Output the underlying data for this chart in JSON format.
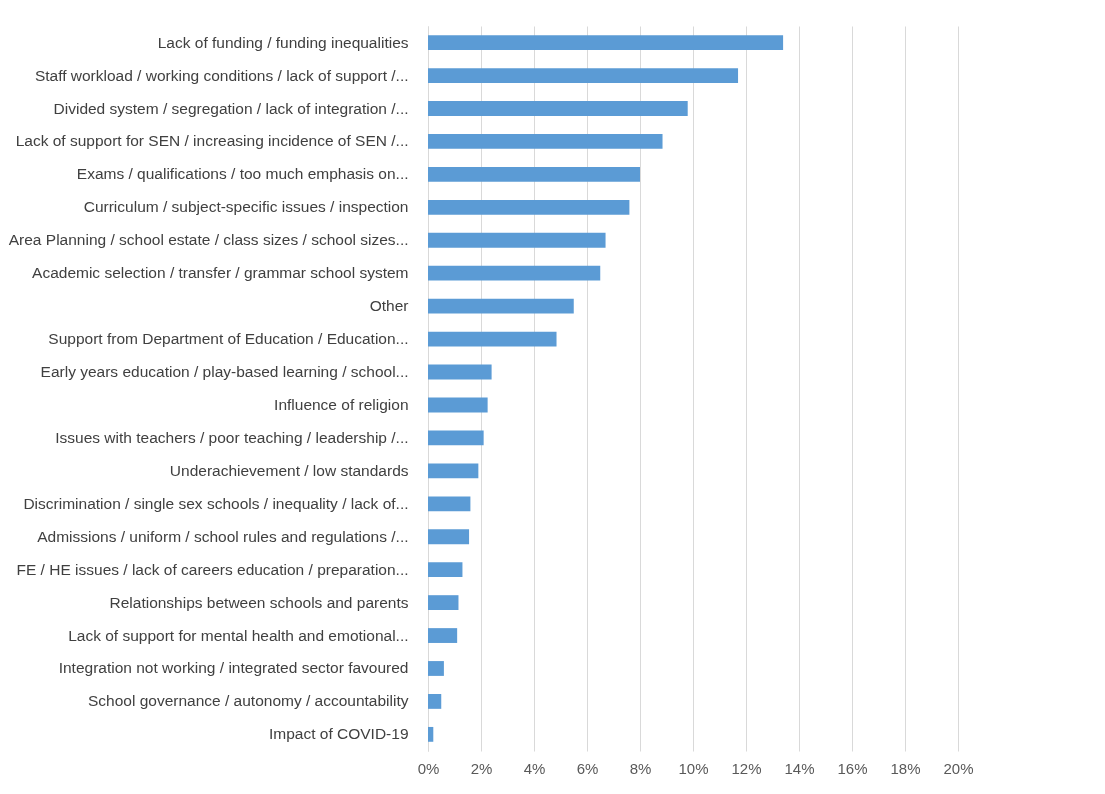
{
  "chart_data": {
    "type": "bar",
    "orientation": "horizontal",
    "categories": [
      "Lack of funding / funding inequalities",
      "Staff workload / working conditions / lack of support /...",
      "Divided system / segregation / lack of integration /...",
      "Lack of support for SEN / increasing incidence of SEN /...",
      "Exams / qualifications / too much emphasis on...",
      "Curriculum / subject-specific issues / inspection",
      "Area Planning / school estate / class sizes / school sizes...",
      "Academic selection / transfer / grammar school system",
      "Other",
      "Support from Department of Education / Education...",
      "Early years education / play-based learning / school...",
      "Influence of religion",
      "Issues with teachers / poor teaching / leadership /...",
      "Underachievement / low standards",
      "Discrimination / single sex schools / inequality / lack of...",
      "Admissions / uniform / school rules and regulations /...",
      "FE / HE issues / lack of careers education / preparation...",
      "Relationships between schools and parents",
      "Lack of support for mental health and emotional...",
      "Integration not working / integrated sector favoured",
      "School governance / autonomy / accountability",
      "Impact of COVID-19"
    ],
    "values": [
      13.4,
      11.7,
      9.8,
      8.85,
      8.0,
      7.6,
      6.7,
      6.5,
      5.5,
      4.85,
      2.4,
      2.25,
      2.1,
      1.9,
      1.6,
      1.55,
      1.3,
      1.15,
      1.1,
      0.6,
      0.5,
      0.2
    ],
    "color": "#5b9bd5",
    "xlim": [
      0,
      20
    ],
    "xticks": [
      {
        "value": 0,
        "label": "0%"
      },
      {
        "value": 2,
        "label": "2%"
      },
      {
        "value": 4,
        "label": "4%"
      },
      {
        "value": 6,
        "label": "6%"
      },
      {
        "value": 8,
        "label": "8%"
      },
      {
        "value": 10,
        "label": "10%"
      },
      {
        "value": 12,
        "label": "12%"
      },
      {
        "value": 14,
        "label": "14%"
      },
      {
        "value": 16,
        "label": "16%"
      },
      {
        "value": 18,
        "label": "18%"
      },
      {
        "value": 20,
        "label": "20%"
      }
    ],
    "grid": "x"
  }
}
